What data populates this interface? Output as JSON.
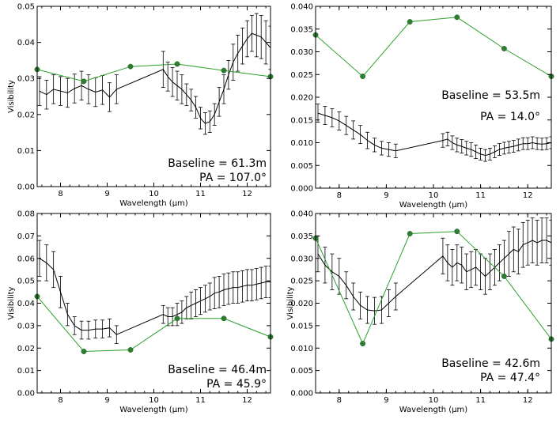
{
  "chart_data": [
    {
      "type": "line",
      "xlabel": "Wavelength (μm)",
      "ylabel": "Visibility",
      "xlim": [
        7.5,
        12.5
      ],
      "ylim": [
        0,
        0.05
      ],
      "xticks": [
        8,
        9,
        10,
        11,
        12
      ],
      "yticks": [
        "0.00",
        "0.01",
        "0.02",
        "0.03",
        "0.04",
        "0.05"
      ],
      "annotation_baseline": "Baseline = 61.3m",
      "annotation_pa": "PA = 107.0°",
      "model": {
        "x": [
          7.5,
          8.5,
          9.5,
          10.5,
          11.5,
          12.5
        ],
        "y": [
          0.0325,
          0.0292,
          0.0333,
          0.034,
          0.0322,
          0.0305
        ]
      },
      "observed": {
        "x": [
          7.55,
          7.7,
          7.85,
          8.0,
          8.15,
          8.3,
          8.45,
          8.6,
          8.75,
          8.9,
          9.05,
          9.2,
          10.2,
          10.3,
          10.4,
          10.5,
          10.6,
          10.7,
          10.8,
          10.9,
          11.0,
          11.1,
          11.2,
          11.3,
          11.4,
          11.5,
          11.6,
          11.7,
          11.8,
          11.9,
          12.0,
          12.1,
          12.2,
          12.3,
          12.4,
          12.5
        ],
        "y": [
          0.0265,
          0.0255,
          0.027,
          0.0265,
          0.026,
          0.0272,
          0.028,
          0.027,
          0.0262,
          0.0268,
          0.0248,
          0.027,
          0.0325,
          0.0305,
          0.029,
          0.028,
          0.027,
          0.0255,
          0.024,
          0.022,
          0.019,
          0.0175,
          0.018,
          0.02,
          0.0235,
          0.027,
          0.031,
          0.0345,
          0.037,
          0.039,
          0.041,
          0.0425,
          0.042,
          0.0415,
          0.04,
          0.0385
        ],
        "err": [
          0.004,
          0.004,
          0.004,
          0.004,
          0.004,
          0.004,
          0.004,
          0.004,
          0.004,
          0.004,
          0.004,
          0.004,
          0.005,
          0.004,
          0.004,
          0.004,
          0.004,
          0.003,
          0.003,
          0.003,
          0.003,
          0.003,
          0.003,
          0.003,
          0.004,
          0.004,
          0.004,
          0.005,
          0.005,
          0.005,
          0.005,
          0.005,
          0.006,
          0.006,
          0.006,
          0.006
        ]
      }
    },
    {
      "type": "line",
      "xlabel": "Wavelength (μm)",
      "ylabel": "",
      "xlim": [
        7.5,
        12.5
      ],
      "ylim": [
        0,
        0.04
      ],
      "xticks": [
        8,
        9,
        10,
        11,
        12
      ],
      "yticks": [
        "0.000",
        "0.005",
        "0.010",
        "0.015",
        "0.020",
        "0.025",
        "0.030",
        "0.035",
        "0.040"
      ],
      "annotation_baseline": "Baseline = 53.5m",
      "annotation_pa": "PA = 14.0°",
      "model": {
        "x": [
          7.5,
          8.5,
          9.5,
          10.5,
          11.5,
          12.5
        ],
        "y": [
          0.0337,
          0.0246,
          0.0366,
          0.0376,
          0.0307,
          0.0246
        ]
      },
      "observed": {
        "x": [
          7.55,
          7.7,
          7.85,
          8.0,
          8.15,
          8.3,
          8.45,
          8.6,
          8.75,
          8.9,
          9.05,
          9.2,
          10.2,
          10.3,
          10.4,
          10.5,
          10.6,
          10.7,
          10.8,
          10.9,
          11.0,
          11.1,
          11.2,
          11.3,
          11.4,
          11.5,
          11.6,
          11.7,
          11.8,
          11.9,
          12.0,
          12.1,
          12.2,
          12.3,
          12.4,
          12.5
        ],
        "y": [
          0.0165,
          0.016,
          0.0155,
          0.0148,
          0.0138,
          0.0128,
          0.0118,
          0.0105,
          0.0095,
          0.0088,
          0.0085,
          0.0082,
          0.0105,
          0.0108,
          0.01,
          0.0095,
          0.0092,
          0.0088,
          0.0085,
          0.008,
          0.0075,
          0.0072,
          0.0075,
          0.008,
          0.0085,
          0.0088,
          0.009,
          0.0092,
          0.0095,
          0.0098,
          0.0098,
          0.01,
          0.0098,
          0.0097,
          0.0098,
          0.01
        ],
        "err": [
          0.002,
          0.002,
          0.002,
          0.002,
          0.002,
          0.002,
          0.002,
          0.0018,
          0.0015,
          0.0015,
          0.0015,
          0.0015,
          0.0015,
          0.0015,
          0.0015,
          0.0015,
          0.0015,
          0.0015,
          0.0015,
          0.0015,
          0.0013,
          0.0013,
          0.0013,
          0.0013,
          0.0013,
          0.0013,
          0.0013,
          0.0013,
          0.0013,
          0.0013,
          0.0013,
          0.0013,
          0.0013,
          0.0013,
          0.0013,
          0.0013
        ]
      }
    },
    {
      "type": "line",
      "xlabel": "Wavelength (μm)",
      "ylabel": "Visibility",
      "xlim": [
        7.5,
        12.5
      ],
      "ylim": [
        0,
        0.08
      ],
      "xticks": [
        8,
        9,
        10,
        11,
        12
      ],
      "yticks": [
        "0.00",
        "0.01",
        "0.02",
        "0.03",
        "0.04",
        "0.05",
        "0.06",
        "0.07",
        "0.08"
      ],
      "annotation_baseline": "Baseline = 46.4m",
      "annotation_pa": "PA = 45.9°",
      "model": {
        "x": [
          7.5,
          8.5,
          9.5,
          10.5,
          11.5,
          12.5
        ],
        "y": [
          0.043,
          0.0185,
          0.0192,
          0.0332,
          0.0332,
          0.025
        ]
      },
      "observed": {
        "x": [
          7.55,
          7.7,
          7.85,
          8.0,
          8.15,
          8.3,
          8.45,
          8.6,
          8.75,
          8.9,
          9.05,
          9.2,
          10.2,
          10.3,
          10.4,
          10.5,
          10.6,
          10.7,
          10.8,
          10.9,
          11.0,
          11.1,
          11.2,
          11.3,
          11.4,
          11.5,
          11.6,
          11.7,
          11.8,
          11.9,
          12.0,
          12.1,
          12.2,
          12.3,
          12.4,
          12.5
        ],
        "y": [
          0.06,
          0.058,
          0.055,
          0.045,
          0.035,
          0.03,
          0.028,
          0.028,
          0.0285,
          0.0285,
          0.029,
          0.026,
          0.035,
          0.034,
          0.034,
          0.035,
          0.036,
          0.038,
          0.039,
          0.04,
          0.041,
          0.042,
          0.043,
          0.0445,
          0.045,
          0.046,
          0.0465,
          0.047,
          0.047,
          0.0475,
          0.048,
          0.048,
          0.0485,
          0.049,
          0.0495,
          0.0495
        ],
        "err": [
          0.008,
          0.008,
          0.008,
          0.007,
          0.005,
          0.004,
          0.004,
          0.004,
          0.004,
          0.004,
          0.004,
          0.004,
          0.004,
          0.004,
          0.004,
          0.005,
          0.005,
          0.005,
          0.006,
          0.006,
          0.006,
          0.006,
          0.006,
          0.007,
          0.007,
          0.007,
          0.007,
          0.007,
          0.007,
          0.007,
          0.007,
          0.007,
          0.007,
          0.007,
          0.007,
          0.007
        ]
      }
    },
    {
      "type": "line",
      "xlabel": "Wavelength (μm)",
      "ylabel": "Visibility",
      "xlim": [
        7.5,
        12.5
      ],
      "ylim": [
        0,
        0.04
      ],
      "xticks": [
        8,
        9,
        10,
        11,
        12
      ],
      "yticks": [
        "0.000",
        "0.005",
        "0.010",
        "0.015",
        "0.020",
        "0.025",
        "0.030",
        "0.035",
        "0.040"
      ],
      "annotation_baseline": "Baseline = 42.6m",
      "annotation_pa": "PA = 47.4°",
      "model": {
        "x": [
          7.5,
          8.5,
          9.5,
          10.5,
          11.5,
          12.5
        ],
        "y": [
          0.0345,
          0.011,
          0.0355,
          0.036,
          0.026,
          0.012
        ]
      },
      "observed": {
        "x": [
          7.55,
          7.7,
          7.85,
          8.0,
          8.15,
          8.3,
          8.45,
          8.6,
          8.75,
          8.9,
          9.05,
          9.2,
          10.2,
          10.3,
          10.4,
          10.5,
          10.6,
          10.7,
          10.8,
          10.9,
          11.0,
          11.1,
          11.2,
          11.3,
          11.4,
          11.5,
          11.6,
          11.7,
          11.8,
          11.9,
          12.0,
          12.1,
          12.2,
          12.3,
          12.4,
          12.5
        ],
        "y": [
          0.031,
          0.0285,
          0.027,
          0.026,
          0.024,
          0.0215,
          0.0195,
          0.0185,
          0.0183,
          0.0185,
          0.02,
          0.0215,
          0.0305,
          0.029,
          0.028,
          0.029,
          0.0285,
          0.027,
          0.0275,
          0.028,
          0.027,
          0.026,
          0.027,
          0.028,
          0.029,
          0.03,
          0.031,
          0.032,
          0.0315,
          0.033,
          0.0335,
          0.034,
          0.0335,
          0.034,
          0.034,
          0.0335
        ],
        "err": [
          0.004,
          0.004,
          0.004,
          0.004,
          0.003,
          0.003,
          0.003,
          0.003,
          0.003,
          0.003,
          0.003,
          0.003,
          0.004,
          0.004,
          0.004,
          0.004,
          0.004,
          0.004,
          0.004,
          0.004,
          0.004,
          0.004,
          0.004,
          0.004,
          0.004,
          0.004,
          0.005,
          0.005,
          0.005,
          0.005,
          0.005,
          0.005,
          0.005,
          0.005,
          0.005,
          0.005
        ]
      }
    }
  ]
}
